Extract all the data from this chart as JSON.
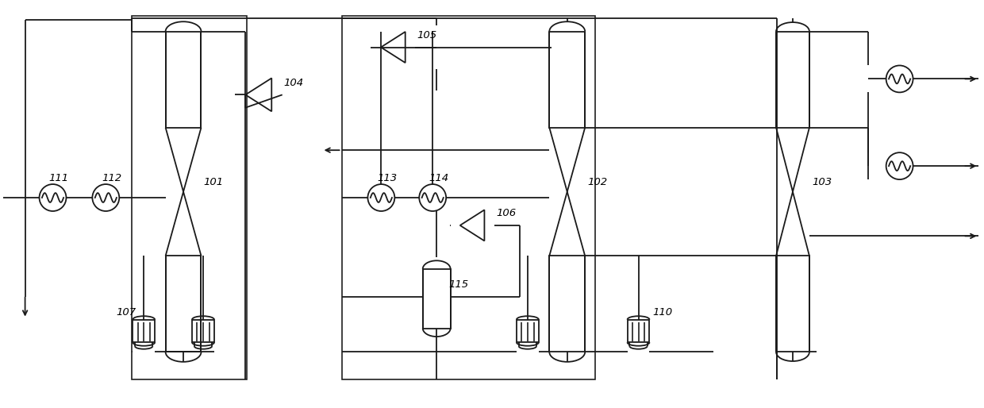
{
  "bg_color": "#ffffff",
  "line_color": "#1a1a1a",
  "lw": 1.3,
  "fig_w": 12.4,
  "fig_h": 5.14,
  "dpi": 100,
  "xlim": [
    0,
    124
  ],
  "ylim": [
    0,
    51.4
  ]
}
